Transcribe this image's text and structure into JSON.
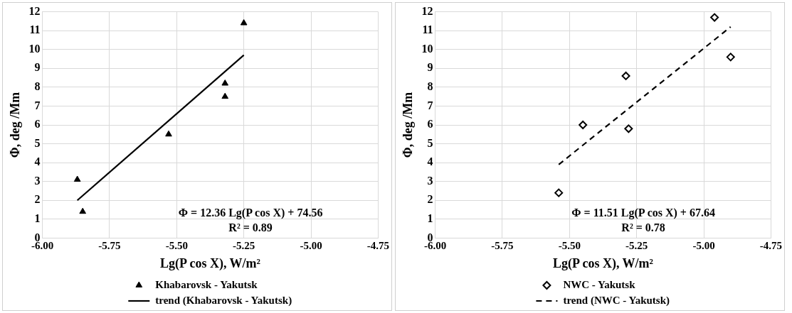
{
  "chart_data": [
    {
      "type": "scatter",
      "xlabel": "Lg(P cos X), W/m²",
      "ylabel": "Φ, deg /Mm",
      "xlim": [
        -6,
        -4.75
      ],
      "ylim": [
        0,
        12
      ],
      "xticks": [
        {
          "value": -6,
          "label": "-6.00"
        },
        {
          "value": -5.75,
          "label": "-5.75"
        },
        {
          "value": -5.5,
          "label": "-5.50"
        },
        {
          "value": -5.25,
          "label": "-5.25"
        },
        {
          "value": -5,
          "label": "-5.00"
        },
        {
          "value": -4.75,
          "label": "-4.75"
        }
      ],
      "yticks": [
        0,
        1,
        2,
        3,
        4,
        5,
        6,
        7,
        8,
        9,
        10,
        11,
        12
      ],
      "grid": true,
      "legend": "bottom",
      "annotations": [
        "Φ = 12.36 Lg(P cos X) + 74.56",
        "R² = 0.89"
      ],
      "series": [
        {
          "name": "Khabarovsk - Yakutsk",
          "color": "#000000",
          "marker": "triangle",
          "x": [
            -5.87,
            -5.85,
            -5.53,
            -5.32,
            -5.32,
            -5.25
          ],
          "values": [
            3.1,
            1.4,
            5.5,
            8.2,
            7.5,
            11.4
          ]
        },
        {
          "name": "trend (Khabarovsk - Yakutsk)",
          "type": "line",
          "color": "#000000",
          "marker": "none",
          "line_style": "solid",
          "x": [
            -5.87,
            -5.25
          ],
          "values": [
            2.0,
            9.7
          ]
        }
      ]
    },
    {
      "type": "scatter",
      "xlabel": "Lg(P cos X), W/m²",
      "ylabel": "Φ, deg /Mm",
      "xlim": [
        -6,
        -4.75
      ],
      "ylim": [
        0,
        12
      ],
      "xticks": [
        {
          "value": -6,
          "label": "-6.00"
        },
        {
          "value": -5.75,
          "label": "-5.75"
        },
        {
          "value": -5.5,
          "label": "-5.50"
        },
        {
          "value": -5.25,
          "label": "-5.25"
        },
        {
          "value": -5,
          "label": "-5.00"
        },
        {
          "value": -4.75,
          "label": "-4.75"
        }
      ],
      "yticks": [
        0,
        1,
        2,
        3,
        4,
        5,
        6,
        7,
        8,
        9,
        10,
        11,
        12
      ],
      "grid": true,
      "legend": "bottom",
      "annotations": [
        "Φ = 11.51 Lg(P cos X) + 67.64",
        "R² = 0.78"
      ],
      "series": [
        {
          "name": "NWC - Yakutsk",
          "color": "#000000",
          "marker": "diamond",
          "x": [
            -5.54,
            -5.45,
            -5.29,
            -5.28,
            -4.96,
            -4.9
          ],
          "values": [
            2.4,
            6.0,
            8.6,
            5.8,
            11.7,
            9.6
          ]
        },
        {
          "name": "trend (NWC - Yakutsk)",
          "type": "line",
          "color": "#000000",
          "marker": "none",
          "line_style": "dashed",
          "x": [
            -5.54,
            -4.9
          ],
          "values": [
            3.9,
            11.2
          ]
        }
      ]
    }
  ]
}
